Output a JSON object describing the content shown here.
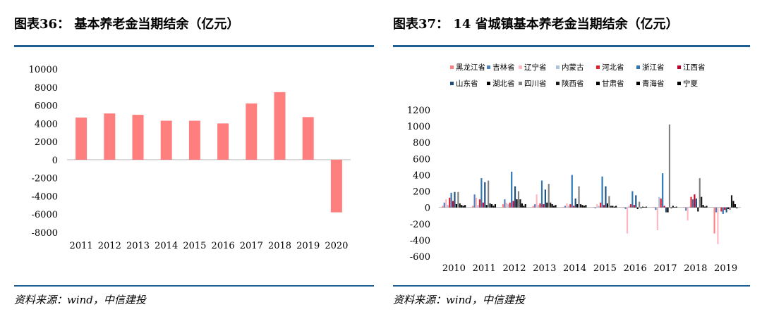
{
  "left_panel": {
    "title": "图表36：  基本养老金当期结余（亿元）",
    "source": "资料来源：wind，中信建投"
  },
  "right_panel": {
    "title": "图表37：  14 省城镇基本养老金当期结余（亿元）",
    "source": "资料来源：wind，中信建投"
  },
  "chart_data": [
    {
      "type": "bar",
      "title": "基本养老金当期结余（亿元）",
      "categories": [
        "2011",
        "2012",
        "2013",
        "2014",
        "2015",
        "2016",
        "2017",
        "2018",
        "2019",
        "2020"
      ],
      "values": [
        4650,
        5100,
        4950,
        4300,
        4300,
        4000,
        6200,
        7450,
        4700,
        -5800
      ],
      "ylim": [
        -8000,
        10000
      ],
      "yticks": [
        "10000",
        "8000",
        "6000",
        "4000",
        "2000",
        "0",
        "-2000",
        "-4000",
        "-6000",
        "-8000"
      ],
      "color": "#ff7f7f",
      "xlabel": "",
      "ylabel": ""
    },
    {
      "type": "bar",
      "title": "14 省城镇基本养老金当期结余（亿元）",
      "categories": [
        "2010",
        "2011",
        "2012",
        "2013",
        "2014",
        "2015",
        "2016",
        "2017",
        "2018",
        "2019"
      ],
      "ylim": [
        -600,
        1200
      ],
      "yticks": [
        "1200",
        "1000",
        "800",
        "600",
        "400",
        "200",
        "0",
        "-200",
        "-400",
        "-600"
      ],
      "legend_position": "top",
      "series": [
        {
          "name": "黑龙江省",
          "color": "#ff7f7f",
          "values": [
            20,
            20,
            40,
            20,
            5,
            5,
            5,
            5,
            5,
            -320
          ]
        },
        {
          "name": "吉林省",
          "color": "#4f81bd",
          "values": [
            60,
            160,
            100,
            40,
            20,
            -10,
            -20,
            -30,
            -40,
            -60
          ]
        },
        {
          "name": "辽宁省",
          "color": "#ffb6c1",
          "values": [
            100,
            120,
            60,
            160,
            50,
            40,
            -320,
            -280,
            -160,
            -450
          ]
        },
        {
          "name": "内蒙古",
          "color": "#aac4dd",
          "values": [
            30,
            30,
            40,
            30,
            20,
            20,
            20,
            130,
            10,
            5
          ]
        },
        {
          "name": "河北省",
          "color": "#e8202a",
          "values": [
            120,
            100,
            60,
            50,
            40,
            60,
            40,
            110,
            130,
            -50
          ]
        },
        {
          "name": "浙江省",
          "color": "#2e75b6",
          "values": [
            180,
            360,
            440,
            330,
            400,
            380,
            200,
            420,
            100,
            -80
          ]
        },
        {
          "name": "江西省",
          "color": "#c0002a",
          "values": [
            80,
            60,
            80,
            40,
            20,
            30,
            30,
            20,
            160,
            -30
          ]
        },
        {
          "name": "山东省",
          "color": "#1f4e79",
          "values": [
            190,
            310,
            260,
            220,
            110,
            260,
            150,
            -60,
            110,
            -60
          ]
        },
        {
          "name": "湖北省",
          "color": "#000000",
          "values": [
            40,
            30,
            100,
            60,
            40,
            50,
            -20,
            -60,
            -50,
            -20
          ]
        },
        {
          "name": "四川省",
          "color": "#7f7f7f",
          "values": [
            190,
            330,
            200,
            290,
            260,
            140,
            70,
            1020,
            360,
            -30
          ]
        },
        {
          "name": "陕西省",
          "color": "#1a1a1a",
          "values": [
            50,
            50,
            100,
            60,
            40,
            20,
            -10,
            -10,
            130,
            150
          ]
        },
        {
          "name": "甘肃省",
          "color": "#000000",
          "values": [
            30,
            40,
            50,
            40,
            30,
            20,
            10,
            20,
            30,
            80
          ]
        },
        {
          "name": "青海省",
          "color": "#000000",
          "values": [
            20,
            20,
            20,
            20,
            20,
            10,
            5,
            5,
            10,
            40
          ]
        },
        {
          "name": "宁夏",
          "color": "#000000",
          "values": [
            30,
            40,
            40,
            30,
            30,
            20,
            10,
            10,
            20,
            -10
          ]
        }
      ],
      "xlabel": "",
      "ylabel": ""
    }
  ]
}
